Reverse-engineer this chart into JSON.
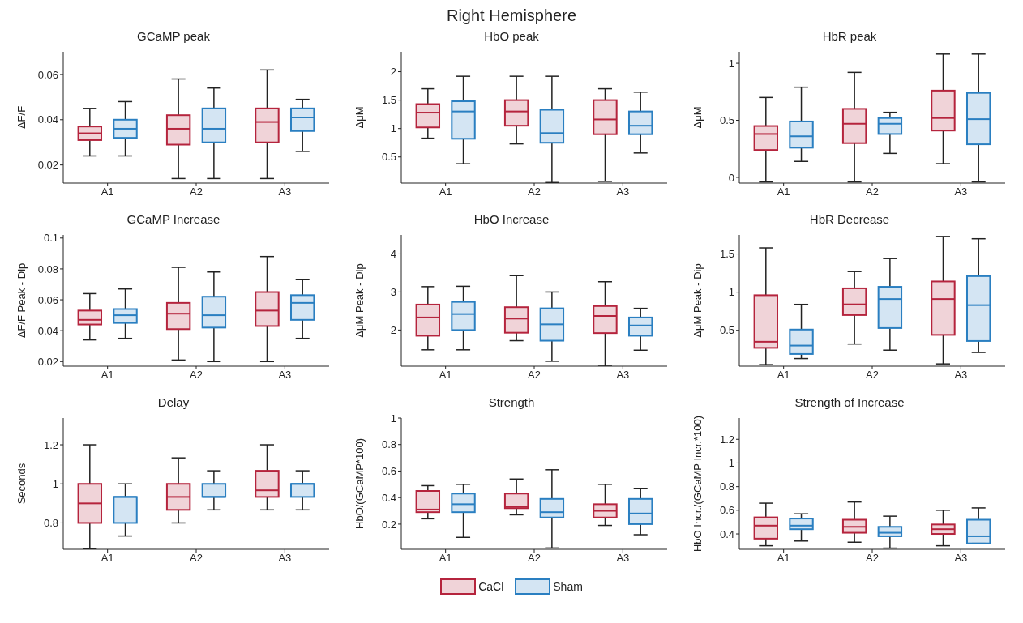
{
  "chart_data": [
    {
      "type": "other",
      "title": "Right Hemisphere"
    },
    {
      "type": "box",
      "title": "GCaMP peak",
      "ylabel": "ΔF/F",
      "categories": [
        "A1",
        "A2",
        "A3"
      ],
      "ylim": [
        0.012,
        0.07
      ],
      "yticks": [
        0.02,
        0.04,
        0.06
      ],
      "series": [
        {
          "color": "#b5243d",
          "boxes": [
            {
              "low": 0.024,
              "q1": 0.031,
              "median": 0.034,
              "q3": 0.037,
              "high": 0.045
            },
            {
              "low": 0.014,
              "q1": 0.029,
              "median": 0.036,
              "q3": 0.042,
              "high": 0.058
            },
            {
              "low": 0.014,
              "q1": 0.03,
              "median": 0.039,
              "q3": 0.045,
              "high": 0.062
            }
          ]
        },
        {
          "color": "#2a7fc1",
          "boxes": [
            {
              "low": 0.024,
              "q1": 0.032,
              "median": 0.036,
              "q3": 0.04,
              "high": 0.048
            },
            {
              "low": 0.014,
              "q1": 0.03,
              "median": 0.036,
              "q3": 0.045,
              "high": 0.054
            },
            {
              "low": 0.026,
              "q1": 0.035,
              "median": 0.041,
              "q3": 0.045,
              "high": 0.049
            }
          ]
        }
      ]
    },
    {
      "type": "box",
      "title": "HbO peak",
      "ylabel": "ΔμM",
      "categories": [
        "A1",
        "A2",
        "A3"
      ],
      "ylim": [
        0.04,
        2.35
      ],
      "yticks": [
        0.5,
        1,
        1.5,
        2
      ],
      "series": [
        {
          "color": "#b5243d",
          "boxes": [
            {
              "low": 0.83,
              "q1": 1.02,
              "median": 1.28,
              "q3": 1.43,
              "high": 1.7
            },
            {
              "low": 0.73,
              "q1": 1.05,
              "median": 1.3,
              "q3": 1.5,
              "high": 1.92
            },
            {
              "low": 0.07,
              "q1": 0.9,
              "median": 1.16,
              "q3": 1.5,
              "high": 1.7
            }
          ]
        },
        {
          "color": "#2a7fc1",
          "boxes": [
            {
              "low": 0.38,
              "q1": 0.82,
              "median": 1.3,
              "q3": 1.48,
              "high": 1.92
            },
            {
              "low": 0.05,
              "q1": 0.75,
              "median": 0.92,
              "q3": 1.33,
              "high": 1.92
            },
            {
              "low": 0.57,
              "q1": 0.9,
              "median": 1.05,
              "q3": 1.3,
              "high": 1.64
            }
          ]
        }
      ]
    },
    {
      "type": "box",
      "title": "HbR peak",
      "ylabel": "ΔμM",
      "categories": [
        "A1",
        "A2",
        "A3"
      ],
      "ylim": [
        -0.05,
        1.1
      ],
      "yticks": [
        0,
        0.5,
        1
      ],
      "series": [
        {
          "color": "#b5243d",
          "boxes": [
            {
              "low": -0.04,
              "q1": 0.24,
              "median": 0.38,
              "q3": 0.45,
              "high": 0.7
            },
            {
              "low": -0.04,
              "q1": 0.3,
              "median": 0.47,
              "q3": 0.6,
              "high": 0.92
            },
            {
              "low": 0.12,
              "q1": 0.41,
              "median": 0.52,
              "q3": 0.76,
              "high": 1.08
            }
          ]
        },
        {
          "color": "#2a7fc1",
          "boxes": [
            {
              "low": 0.14,
              "q1": 0.26,
              "median": 0.36,
              "q3": 0.49,
              "high": 0.79
            },
            {
              "low": 0.21,
              "q1": 0.38,
              "median": 0.47,
              "q3": 0.52,
              "high": 0.57
            },
            {
              "low": -0.04,
              "q1": 0.29,
              "median": 0.51,
              "q3": 0.74,
              "high": 1.08
            }
          ]
        }
      ]
    },
    {
      "type": "box",
      "title": "GCaMP Increase",
      "ylabel": "ΔF/F Peak - Dip",
      "categories": [
        "A1",
        "A2",
        "A3"
      ],
      "ylim": [
        0.017,
        0.102
      ],
      "yticks": [
        0.02,
        0.04,
        0.06,
        0.08,
        0.1
      ],
      "series": [
        {
          "color": "#b5243d",
          "boxes": [
            {
              "low": 0.034,
              "q1": 0.044,
              "median": 0.047,
              "q3": 0.053,
              "high": 0.064
            },
            {
              "low": 0.021,
              "q1": 0.041,
              "median": 0.051,
              "q3": 0.058,
              "high": 0.081
            },
            {
              "low": 0.02,
              "q1": 0.043,
              "median": 0.053,
              "q3": 0.065,
              "high": 0.088
            }
          ]
        },
        {
          "color": "#2a7fc1",
          "boxes": [
            {
              "low": 0.035,
              "q1": 0.045,
              "median": 0.05,
              "q3": 0.054,
              "high": 0.067
            },
            {
              "low": 0.02,
              "q1": 0.042,
              "median": 0.05,
              "q3": 0.062,
              "high": 0.078
            },
            {
              "low": 0.035,
              "q1": 0.047,
              "median": 0.058,
              "q3": 0.063,
              "high": 0.073
            }
          ]
        }
      ]
    },
    {
      "type": "box",
      "title": "HbO Increase",
      "ylabel": "ΔμM Peak - Dip",
      "categories": [
        "A1",
        "A2",
        "A3"
      ],
      "ylim": [
        1.05,
        4.5
      ],
      "yticks": [
        2,
        3,
        4
      ],
      "series": [
        {
          "color": "#b5243d",
          "boxes": [
            {
              "low": 1.48,
              "q1": 1.85,
              "median": 2.33,
              "q3": 2.67,
              "high": 3.14
            },
            {
              "low": 1.72,
              "q1": 1.93,
              "median": 2.3,
              "q3": 2.6,
              "high": 3.43
            },
            {
              "low": 1.05,
              "q1": 1.92,
              "median": 2.37,
              "q3": 2.63,
              "high": 3.27
            }
          ]
        },
        {
          "color": "#2a7fc1",
          "boxes": [
            {
              "low": 1.48,
              "q1": 2.0,
              "median": 2.42,
              "q3": 2.74,
              "high": 3.15
            },
            {
              "low": 1.18,
              "q1": 1.72,
              "median": 2.15,
              "q3": 2.57,
              "high": 3.0
            },
            {
              "low": 1.47,
              "q1": 1.85,
              "median": 2.12,
              "q3": 2.33,
              "high": 2.57
            }
          ]
        }
      ]
    },
    {
      "type": "box",
      "title": "HbR Decrease",
      "ylabel": "ΔμM Peak - Dip",
      "categories": [
        "A1",
        "A2",
        "A3"
      ],
      "ylim": [
        0.03,
        1.75
      ],
      "yticks": [
        0.5,
        1,
        1.5
      ],
      "series": [
        {
          "color": "#b5243d",
          "boxes": [
            {
              "low": 0.05,
              "q1": 0.27,
              "median": 0.35,
              "q3": 0.96,
              "high": 1.58
            },
            {
              "low": 0.32,
              "q1": 0.7,
              "median": 0.84,
              "q3": 1.05,
              "high": 1.27
            },
            {
              "low": 0.06,
              "q1": 0.44,
              "median": 0.91,
              "q3": 1.14,
              "high": 1.73
            }
          ]
        },
        {
          "color": "#2a7fc1",
          "boxes": [
            {
              "low": 0.13,
              "q1": 0.19,
              "median": 0.3,
              "q3": 0.51,
              "high": 0.84
            },
            {
              "low": 0.24,
              "q1": 0.53,
              "median": 0.91,
              "q3": 1.07,
              "high": 1.44
            },
            {
              "low": 0.21,
              "q1": 0.36,
              "median": 0.83,
              "q3": 1.21,
              "high": 1.7
            }
          ]
        }
      ]
    },
    {
      "type": "box",
      "title": "Delay",
      "ylabel": "Seconds",
      "categories": [
        "A1",
        "A2",
        "A3"
      ],
      "ylim": [
        0.665,
        1.337
      ],
      "yticks": [
        0.8,
        1,
        1.2
      ],
      "series": [
        {
          "color": "#b5243d",
          "boxes": [
            {
              "low": 0.667,
              "q1": 0.8,
              "median": 0.9,
              "q3": 1.0,
              "high": 1.2
            },
            {
              "low": 0.8,
              "q1": 0.867,
              "median": 0.933,
              "q3": 1.0,
              "high": 1.133
            },
            {
              "low": 0.867,
              "q1": 0.933,
              "median": 0.967,
              "q3": 1.067,
              "high": 1.2
            }
          ]
        },
        {
          "color": "#2a7fc1",
          "boxes": [
            {
              "low": 0.733,
              "q1": 0.8,
              "median": 0.933,
              "q3": 0.933,
              "high": 1.0
            },
            {
              "low": 0.867,
              "q1": 0.933,
              "median": 0.933,
              "q3": 1.0,
              "high": 1.067
            },
            {
              "low": 0.867,
              "q1": 0.933,
              "median": 1.0,
              "q3": 1.0,
              "high": 1.067
            }
          ]
        }
      ]
    },
    {
      "type": "box",
      "title": "Strength",
      "ylabel": "HbO/(GCaMP*100)",
      "categories": [
        "A1",
        "A2",
        "A3"
      ],
      "ylim": [
        0.01,
        1.0
      ],
      "yticks": [
        0.2,
        0.4,
        0.6,
        0.8,
        1
      ],
      "legend": "bottom",
      "series": [
        {
          "name": "CaCl",
          "color": "#b5243d",
          "boxes": [
            {
              "low": 0.24,
              "q1": 0.29,
              "median": 0.31,
              "q3": 0.45,
              "high": 0.49
            },
            {
              "low": 0.27,
              "q1": 0.32,
              "median": 0.33,
              "q3": 0.43,
              "high": 0.54
            },
            {
              "low": 0.19,
              "q1": 0.25,
              "median": 0.3,
              "q3": 0.35,
              "high": 0.5
            }
          ]
        },
        {
          "name": "Sham",
          "color": "#2a7fc1",
          "boxes": [
            {
              "low": 0.1,
              "q1": 0.29,
              "median": 0.35,
              "q3": 0.43,
              "high": 0.5
            },
            {
              "low": 0.02,
              "q1": 0.25,
              "median": 0.29,
              "q3": 0.39,
              "high": 0.61
            },
            {
              "low": 0.12,
              "q1": 0.2,
              "median": 0.28,
              "q3": 0.39,
              "high": 0.47
            }
          ]
        }
      ]
    },
    {
      "type": "box",
      "title": "Strength of Increase",
      "ylabel": "HbO Incr./(GCaMP Incr.*100)",
      "categories": [
        "A1",
        "A2",
        "A3"
      ],
      "ylim": [
        0.27,
        1.38
      ],
      "yticks": [
        0.4,
        0.6,
        0.8,
        1,
        1.2
      ],
      "series": [
        {
          "color": "#b5243d",
          "boxes": [
            {
              "low": 0.3,
              "q1": 0.36,
              "median": 0.47,
              "q3": 0.54,
              "high": 0.66
            },
            {
              "low": 0.33,
              "q1": 0.41,
              "median": 0.46,
              "q3": 0.52,
              "high": 0.67
            },
            {
              "low": 0.3,
              "q1": 0.4,
              "median": 0.44,
              "q3": 0.48,
              "high": 0.6
            }
          ]
        },
        {
          "color": "#2a7fc1",
          "boxes": [
            {
              "low": 0.34,
              "q1": 0.44,
              "median": 0.47,
              "q3": 0.53,
              "high": 0.57
            },
            {
              "low": 0.28,
              "q1": 0.38,
              "median": 0.41,
              "q3": 0.46,
              "high": 0.55
            },
            {
              "low": 0.32,
              "q1": 0.32,
              "median": 0.38,
              "q3": 0.52,
              "high": 0.62
            }
          ]
        }
      ]
    }
  ]
}
